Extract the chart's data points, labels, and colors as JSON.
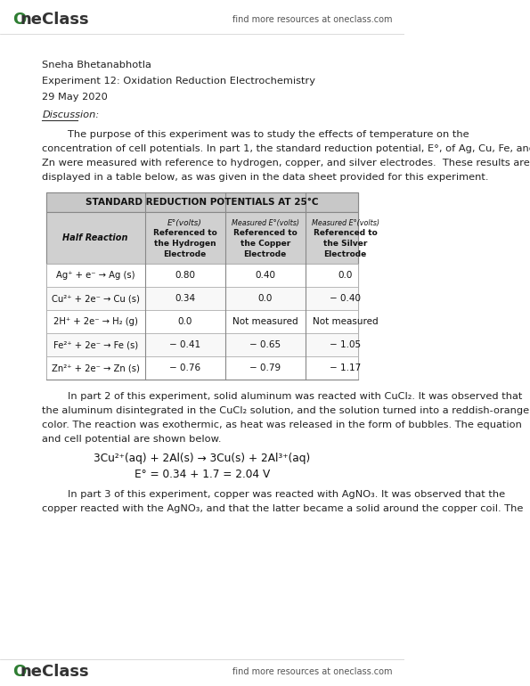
{
  "bg_color": "#ffffff",
  "logo_color": "#2e7d32",
  "header_right": "find more resources at oneclass.com",
  "footer_right": "find more resources at oneclass.com",
  "name": "Sneha Bhetanabhotla",
  "experiment": "Experiment 12: Oxidation Reduction Electrochemistry",
  "date": "29 May 2020",
  "section": "Discussion:",
  "para1_lines": [
    "        The purpose of this experiment was to study the effects of temperature on the",
    "concentration of cell potentials. In part 1, the standard reduction potential, E°, of Ag, Cu, Fe, and",
    "Zn were measured with reference to hydrogen, copper, and silver electrodes.  These results are",
    "displayed in a table below, as was given in the data sheet provided for this experiment."
  ],
  "table_title": "STANDARD REDUCTION POTENTIALS AT 25°C",
  "table_rows": [
    [
      "Ag⁺ + e⁻ → Ag (s)",
      "0.80",
      "0.40",
      "0.0"
    ],
    [
      "Cu²⁺ + 2e⁻ → Cu (s)",
      "0.34",
      "0.0",
      "− 0.40"
    ],
    [
      "2H⁺ + 2e⁻ → H₂ (g)",
      "0.0",
      "Not measured",
      "Not measured"
    ],
    [
      "Fe²⁺ + 2e⁻ → Fe (s)",
      "− 0.41",
      "− 0.65",
      "− 1.05"
    ],
    [
      "Zn²⁺ + 2e⁻ → Zn (s)",
      "− 0.76",
      "− 0.79",
      "− 1.17"
    ]
  ],
  "para2_lines": [
    "        In part 2 of this experiment, solid aluminum was reacted with CuCl₂. It was observed that",
    "the aluminum disintegrated in the CuCl₂ solution, and the solution turned into a reddish-orange",
    "color. The reaction was exothermic, as heat was released in the form of bubbles. The equation",
    "and cell potential are shown below."
  ],
  "equation1": "3Cu²⁺(aq) + 2Al(s) → 3Cu(s) + 2Al³⁺(aq)",
  "equation2": "E° = 0.34 + 1.7 = 2.04 V",
  "para3_lines": [
    "        In part 3 of this experiment, copper was reacted with AgNO₃. It was observed that the",
    "copper reacted with the AgNO₃, and that the latter became a solid around the copper coil. The"
  ]
}
